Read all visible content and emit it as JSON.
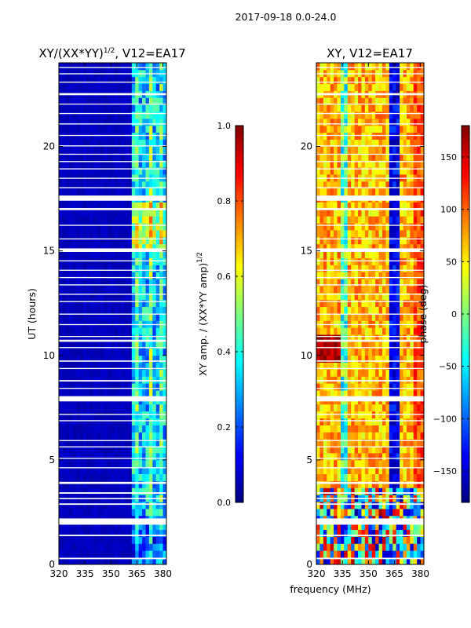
{
  "chart_data": [
    {
      "type": "heatmap",
      "panel": "amplitude",
      "suptitle": "2017-09-18 0.0-24.0",
      "title": "XY/(XX*YY)",
      "title_sup": "1/2",
      "title_suffix": ", V12=EA17",
      "ylabel": "UT (hours)",
      "xlim": [
        320,
        382
      ],
      "ylim": [
        0,
        24
      ],
      "xticks": [
        320,
        335,
        350,
        365,
        380
      ],
      "yticks": [
        0,
        5,
        10,
        15,
        20
      ],
      "colorbar": {
        "label": "XY amp. / (XX*YY amp)",
        "label_sup": "1/2",
        "range": [
          0.0,
          1.0
        ],
        "ticks": [
          0.0,
          0.2,
          0.4,
          0.6,
          0.8,
          1.0
        ],
        "tick_labels": [
          "0.0",
          "0.2",
          "0.4",
          "0.6",
          "0.8",
          "1.0"
        ]
      },
      "description": "Low amplitude (~0.05) across 320-362 MHz; elevated amplitude (0.3-0.8) in the 362-382 MHz band, strongest near 15-17 UT; white gaps are missing data."
    },
    {
      "type": "heatmap",
      "panel": "phase",
      "title": "XY, V12=EA17",
      "xlabel": "frequency (MHz)",
      "xlim": [
        320,
        382
      ],
      "ylim": [
        0,
        24
      ],
      "xticks": [
        320,
        335,
        350,
        365,
        380
      ],
      "yticks": [
        0,
        5,
        10,
        15,
        20
      ],
      "colorbar": {
        "label": "phase (deg)",
        "range": [
          -180,
          180
        ],
        "ticks": [
          -150,
          -100,
          -50,
          0,
          50,
          100,
          150
        ],
        "tick_labels": [
          "−150",
          "−100",
          "−50",
          "0",
          "50",
          "100",
          "150"
        ]
      },
      "description": "Mostly 40-120 deg phases with bands of negative phase near 335 MHz and 362-368 MHz; noisy below 4 UT."
    }
  ],
  "gap_bands_ut": [
    [
      0.25,
      0.32
    ],
    [
      1.35,
      1.42
    ],
    [
      1.9,
      2.2
    ],
    [
      2.85,
      2.92
    ],
    [
      3.12,
      3.18
    ],
    [
      3.38,
      3.45
    ],
    [
      3.85,
      3.95
    ],
    [
      4.6,
      4.65
    ],
    [
      5.05,
      5.1
    ],
    [
      5.6,
      5.65
    ],
    [
      5.9,
      5.95
    ],
    [
      6.85,
      6.9
    ],
    [
      7.15,
      7.2
    ],
    [
      7.8,
      8.05
    ],
    [
      8.4,
      8.45
    ],
    [
      8.75,
      8.82
    ],
    [
      9.35,
      9.4
    ],
    [
      9.7,
      9.76
    ],
    [
      10.35,
      10.4
    ],
    [
      10.65,
      10.75
    ],
    [
      10.88,
      10.93
    ],
    [
      11.45,
      11.5
    ],
    [
      11.95,
      12.0
    ],
    [
      12.55,
      12.6
    ],
    [
      12.9,
      12.95
    ],
    [
      13.35,
      13.4
    ],
    [
      13.7,
      13.75
    ],
    [
      14.05,
      14.1
    ],
    [
      14.5,
      14.55
    ],
    [
      14.95,
      15.12
    ],
    [
      15.55,
      15.6
    ],
    [
      16.2,
      16.25
    ],
    [
      16.95,
      17.05
    ],
    [
      17.4,
      17.65
    ],
    [
      18.0,
      18.05
    ],
    [
      18.45,
      18.5
    ],
    [
      18.9,
      18.95
    ],
    [
      19.25,
      19.3
    ],
    [
      19.6,
      19.65
    ],
    [
      20.0,
      20.05
    ],
    [
      20.5,
      20.55
    ],
    [
      21.05,
      21.1
    ],
    [
      21.55,
      21.6
    ],
    [
      22.0,
      22.05
    ],
    [
      22.45,
      22.55
    ],
    [
      23.05,
      23.1
    ],
    [
      23.45,
      23.5
    ],
    [
      23.75,
      23.8
    ]
  ]
}
